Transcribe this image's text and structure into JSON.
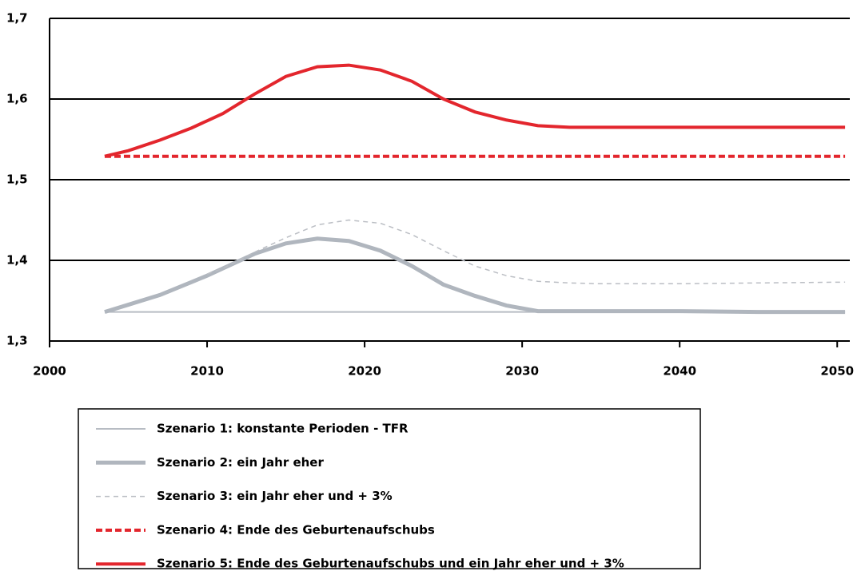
{
  "chart_data": {
    "type": "line",
    "x": [
      2003.5,
      2005,
      2007,
      2009,
      2010,
      2011,
      2013,
      2015,
      2017,
      2019,
      2021,
      2023,
      2025,
      2027,
      2029,
      2031,
      2033,
      2035,
      2040,
      2045,
      2050.5
    ],
    "series": [
      {
        "name": "Szenario 1: konstante Perioden - TFR",
        "color": "#b7bcc3",
        "width": 2,
        "dash": "none",
        "values": [
          1.336,
          1.336,
          1.336,
          1.336,
          1.336,
          1.336,
          1.336,
          1.336,
          1.336,
          1.336,
          1.336,
          1.336,
          1.336,
          1.336,
          1.336,
          1.336,
          1.336,
          1.336,
          1.336,
          1.336,
          1.336
        ]
      },
      {
        "name": "Szenario 2: ein Jahr eher",
        "color": "#b0b6be",
        "width": 5,
        "dash": "none",
        "values": [
          1.336,
          1.345,
          1.357,
          1.373,
          1.381,
          1.39,
          1.408,
          1.421,
          1.427,
          1.424,
          1.412,
          1.393,
          1.37,
          1.356,
          1.344,
          1.337,
          1.337,
          1.337,
          1.337,
          1.336,
          1.336
        ]
      },
      {
        "name": "Szenario 3: ein Jahr eher und + 3%",
        "color": "#bbbec4",
        "width": 1.5,
        "dash": "6 5",
        "values": [
          null,
          null,
          null,
          null,
          1.383,
          1.39,
          1.41,
          1.428,
          1.444,
          1.45,
          1.446,
          1.432,
          1.412,
          1.393,
          1.381,
          1.374,
          1.372,
          1.371,
          1.371,
          1.372,
          1.373
        ]
      },
      {
        "name": "Szenario 4: Ende des Geburtenaufschubs",
        "color": "#e3262d",
        "width": 4,
        "dash": "8 4",
        "values": [
          1.529,
          1.529,
          1.529,
          1.529,
          1.529,
          1.529,
          1.529,
          1.529,
          1.529,
          1.529,
          1.529,
          1.529,
          1.529,
          1.529,
          1.529,
          1.529,
          1.529,
          1.529,
          1.529,
          1.529,
          1.529
        ]
      },
      {
        "name": "Szenario 5: Ende des Geburtenaufschubs und ein Jahr eher und + 3%",
        "color": "#e3262d",
        "width": 4,
        "dash": "none",
        "values": [
          1.529,
          1.536,
          1.549,
          1.564,
          1.573,
          1.582,
          1.606,
          1.628,
          1.64,
          1.642,
          1.636,
          1.622,
          1.6,
          1.584,
          1.574,
          1.567,
          1.565,
          1.565,
          1.565,
          1.565,
          1.565
        ]
      }
    ],
    "xlim": [
      2000,
      2050.8
    ],
    "xticks": [
      2000,
      2010,
      2020,
      2030,
      2040,
      2050
    ],
    "ylim": [
      1.3,
      1.7
    ],
    "yticks": [
      {
        "value": 1.3,
        "label": "1,3"
      },
      {
        "value": 1.4,
        "label": "1,4"
      },
      {
        "value": 1.5,
        "label": "1,5"
      },
      {
        "value": 1.6,
        "label": "1,6"
      },
      {
        "value": 1.7,
        "label": "1,7"
      }
    ],
    "grid": true,
    "legend": "bottom"
  }
}
